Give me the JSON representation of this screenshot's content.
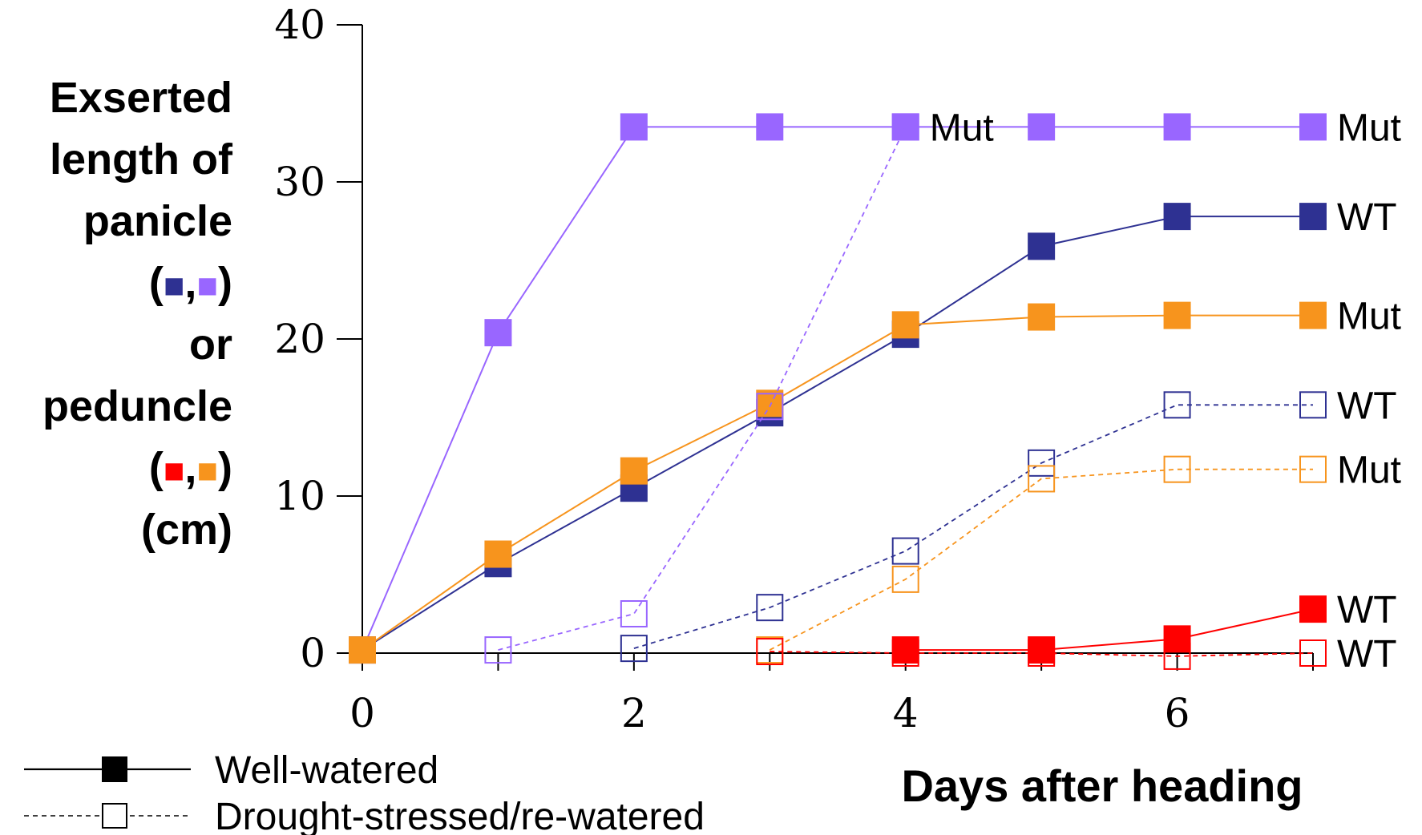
{
  "chart_data": {
    "type": "line",
    "xlabel": "Days after heading",
    "ylabel_lines": [
      "Exserted",
      "length of",
      "panicle",
      "(■,■)",
      "or",
      "peduncle",
      "(■,■)",
      "(cm)"
    ],
    "ylabel_key_colors": {
      "panicle": [
        "#2e3192",
        "#9966ff"
      ],
      "peduncle": [
        "#ff0000",
        "#f7941d"
      ]
    },
    "xlim": [
      0,
      7
    ],
    "ylim": [
      0,
      40
    ],
    "xticks": [
      0,
      2,
      4,
      6
    ],
    "yticks": [
      0,
      10,
      20,
      30,
      40
    ],
    "grid": false,
    "series": [
      {
        "name": "Mut",
        "group": "panicle",
        "treatment": "Well-watered",
        "color": "#9966ff",
        "filled": true,
        "dashed": false,
        "x": [
          0,
          1,
          2,
          3,
          4,
          5,
          6,
          7
        ],
        "y": [
          0.2,
          20.4,
          33.5,
          33.5,
          33.5,
          33.5,
          33.5,
          33.5
        ]
      },
      {
        "name": "WT",
        "group": "panicle",
        "treatment": "Well-watered",
        "color": "#2e3192",
        "filled": true,
        "dashed": false,
        "x": [
          0,
          1,
          2,
          3,
          4,
          5,
          6,
          7
        ],
        "y": [
          0.2,
          5.7,
          10.5,
          15.3,
          20.3,
          25.9,
          27.8,
          27.8
        ]
      },
      {
        "name": "Mut",
        "group": "peduncle",
        "treatment": "Well-watered",
        "color": "#f7941d",
        "filled": true,
        "dashed": false,
        "x": [
          0,
          1,
          2,
          3,
          4,
          5,
          6,
          7
        ],
        "y": [
          0.2,
          6.3,
          11.6,
          15.9,
          20.9,
          21.4,
          21.5,
          21.5
        ]
      },
      {
        "name": "WT",
        "group": "panicle",
        "treatment": "Drought-stressed/re-watered",
        "color": "#2e3192",
        "filled": false,
        "dashed": true,
        "x": [
          2,
          3,
          4,
          5,
          6,
          7
        ],
        "y": [
          0.3,
          2.9,
          6.5,
          12.1,
          15.8,
          15.8
        ]
      },
      {
        "name": "Mut",
        "group": "peduncle",
        "treatment": "Drought-stressed/re-watered",
        "color": "#f7941d",
        "filled": false,
        "dashed": true,
        "x": [
          3,
          4,
          5,
          6,
          7
        ],
        "y": [
          0.2,
          4.7,
          11.1,
          11.7,
          11.7
        ]
      },
      {
        "name": "Mut",
        "group": "panicle",
        "treatment": "Drought-stressed/re-watered",
        "color": "#9966ff",
        "filled": false,
        "dashed": true,
        "x": [
          1,
          2,
          3,
          4
        ],
        "y": [
          0.2,
          2.5,
          15.7,
          33.5
        ]
      },
      {
        "name": "WT",
        "group": "peduncle",
        "treatment": "Well-watered",
        "color": "#ff0000",
        "filled": true,
        "dashed": false,
        "x": [
          4,
          5,
          6,
          7
        ],
        "y": [
          0.2,
          0.2,
          0.9,
          2.8
        ]
      },
      {
        "name": "WT",
        "group": "peduncle",
        "treatment": "Drought-stressed/re-watered",
        "color": "#ff0000",
        "filled": false,
        "dashed": true,
        "x": [
          3,
          4,
          5,
          6,
          7
        ],
        "y": [
          0.1,
          0,
          0,
          -0.2,
          0
        ]
      }
    ],
    "legend": [
      {
        "label": "Well-watered",
        "filled": true,
        "dashed": false
      },
      {
        "label": "Drought-stressed/re-watered",
        "filled": false,
        "dashed": true
      }
    ]
  }
}
